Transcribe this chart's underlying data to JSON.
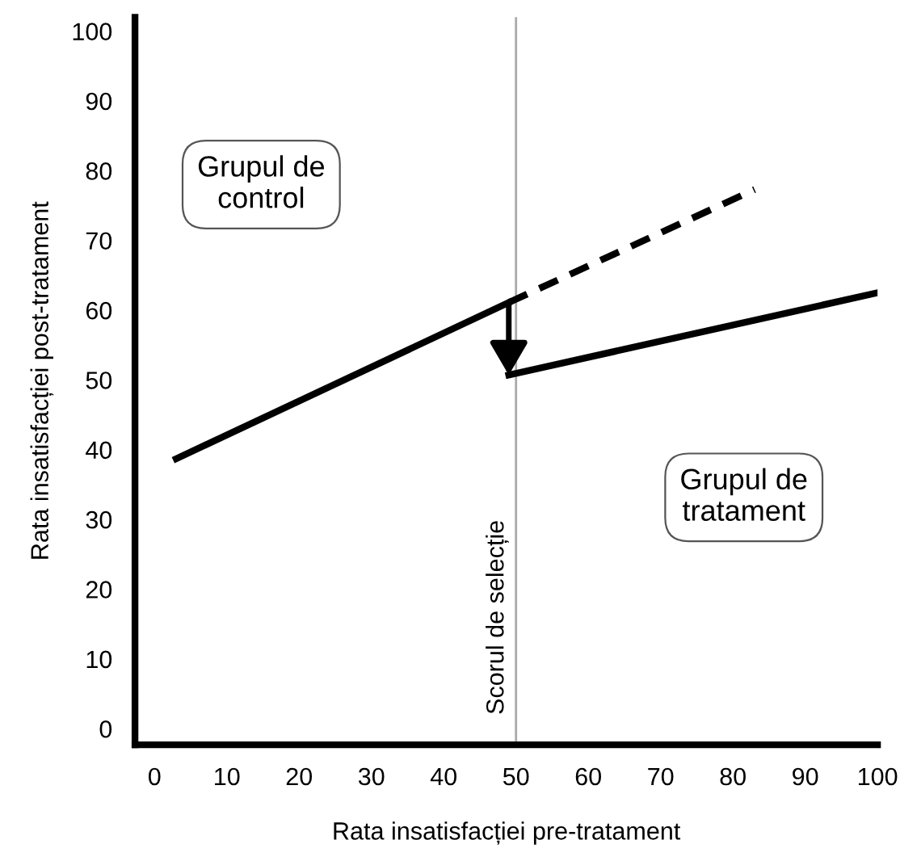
{
  "chart_data": {
    "type": "line",
    "xlabel": "Rata insatisfacției pre-tratament",
    "ylabel": "Rata insatisfacției post-tratament",
    "xlim": [
      -2.7,
      100
    ],
    "ylim": [
      -2.3,
      102
    ],
    "xticks": [
      0,
      10,
      20,
      30,
      40,
      50,
      60,
      70,
      80,
      90,
      100
    ],
    "yticks": [
      0,
      10,
      20,
      30,
      40,
      50,
      60,
      70,
      80,
      90,
      100
    ],
    "grid": false,
    "marker": "none",
    "series": [
      {
        "color": "#000000",
        "line_style": "solid",
        "x": [
          3,
          49
        ],
        "values": [
          38.7,
          61.1
        ]
      },
      {
        "color": "#000000",
        "line_style": "dashed",
        "x": [
          49,
          83
        ],
        "values": [
          61.1,
          77.3
        ]
      },
      {
        "color": "#000000",
        "line_style": "solid",
        "x": [
          49,
          100
        ],
        "values": [
          50.7,
          62.5
        ]
      }
    ],
    "ref_lines": [
      {
        "axis": "x",
        "value": 50,
        "label": "Scorul de selecție",
        "color": "#aaaaaa"
      }
    ],
    "annotations": [
      "Grupul de\ncontrol",
      "Grupul de\ntratament"
    ]
  }
}
